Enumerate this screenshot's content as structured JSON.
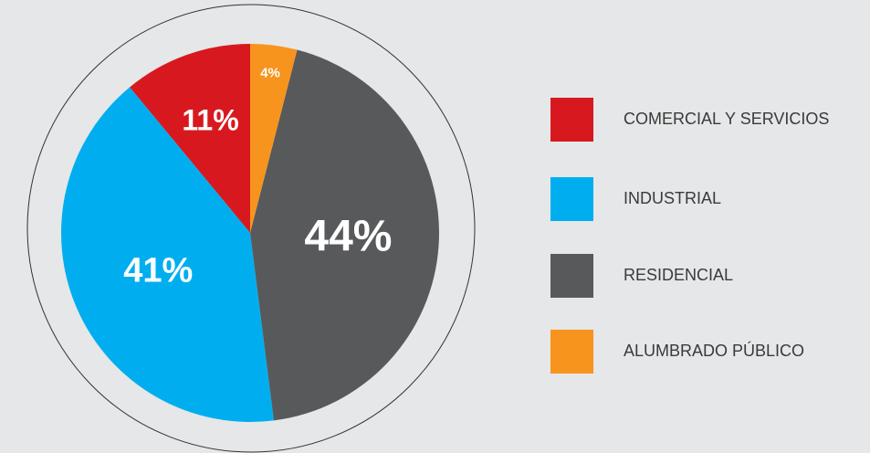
{
  "chart_data": {
    "type": "pie",
    "categories": [
      "COMERCIAL Y SERVICIOS",
      "INDUSTRIAL",
      "RESIDENCIAL",
      "ALUMBRADO PÚBLICO"
    ],
    "values": [
      11,
      41,
      44,
      4
    ],
    "value_labels": [
      "11%",
      "41%",
      "44%",
      "4%"
    ],
    "colors": [
      "#d7191f",
      "#00aeef",
      "#58595b",
      "#f7941d"
    ],
    "legend": "right"
  }
}
